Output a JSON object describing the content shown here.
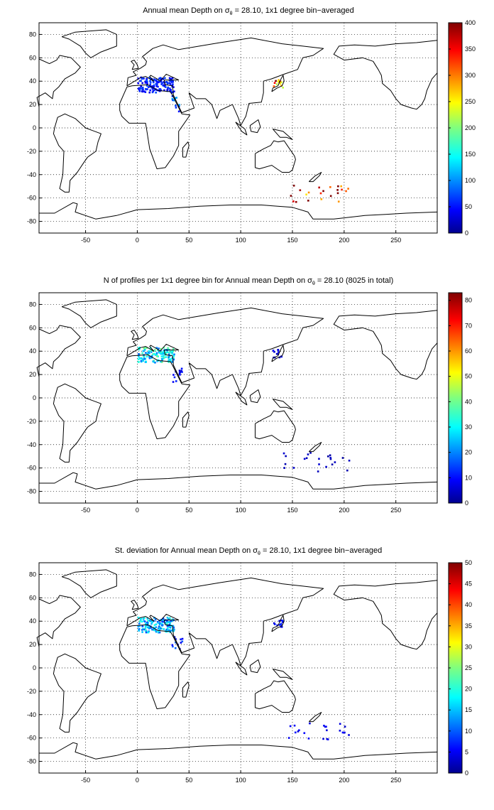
{
  "panels": [
    {
      "title_prefix": "Annual mean Depth on ",
      "sigma": "σ",
      "sigma_sub": "θ",
      "title_suffix": " = 28.10, 1x1 degree bin−averaged",
      "colorbar_ticks": [
        "0",
        "50",
        "100",
        "150",
        "200",
        "250",
        "300",
        "350",
        "400"
      ]
    },
    {
      "title_prefix": "N of profiles per 1x1 degree bin for Annual mean Depth on ",
      "sigma": "σ",
      "sigma_sub": "θ",
      "title_suffix": " = 28.10 (8025 in total)",
      "colorbar_ticks": [
        "0",
        "10",
        "20",
        "30",
        "40",
        "50",
        "60",
        "70",
        "80"
      ]
    },
    {
      "title_prefix": "St. deviation for Annual mean Depth on ",
      "sigma": "σ",
      "sigma_sub": "θ",
      "title_suffix": " = 28.10, 1x1 degree bin−averaged",
      "colorbar_ticks": [
        "0",
        "5",
        "10",
        "15",
        "20",
        "25",
        "30",
        "35",
        "40",
        "45",
        "50"
      ]
    }
  ],
  "chart_data": [
    {
      "type": "heatmap",
      "title": "Annual mean Depth on σθ = 28.10, 1x1 degree bin−averaged",
      "xlim": [
        -95,
        290
      ],
      "ylim": [
        -90,
        90
      ],
      "xticks": [
        -50,
        0,
        50,
        100,
        150,
        200,
        250
      ],
      "yticks": [
        -80,
        -60,
        -40,
        -20,
        0,
        20,
        40,
        60,
        80
      ],
      "colorbar": {
        "min": 0,
        "max": 400,
        "colormap": "jet"
      },
      "grid": true,
      "regions": [
        {
          "name": "Mediterranean",
          "lon": [
            0,
            35
          ],
          "lat": [
            31,
            44
          ],
          "value": 60
        },
        {
          "name": "Red Sea",
          "lon": [
            33,
            43
          ],
          "lat": [
            13,
            28
          ],
          "value": 90
        },
        {
          "name": "Southern Ocean",
          "lon": [
            140,
            205
          ],
          "lat": [
            -63,
            -46
          ],
          "value": 370
        },
        {
          "name": "Japan Sea",
          "lon": [
            130,
            140
          ],
          "lat": [
            35,
            42
          ],
          "value": 330
        }
      ]
    },
    {
      "type": "heatmap",
      "title": "N of profiles per 1x1 degree bin for Annual mean Depth on σθ = 28.10 (8025 in total)",
      "xlim": [
        -95,
        290
      ],
      "ylim": [
        -90,
        90
      ],
      "xticks": [
        -50,
        0,
        50,
        100,
        150,
        200,
        250
      ],
      "yticks": [
        -80,
        -60,
        -40,
        -20,
        0,
        20,
        40,
        60,
        80
      ],
      "colorbar": {
        "min": 0,
        "max": 83,
        "colormap": "jet"
      },
      "grid": true,
      "regions": [
        {
          "name": "Mediterranean",
          "lon": [
            0,
            35
          ],
          "lat": [
            31,
            44
          ],
          "value": 30
        },
        {
          "name": "Red Sea",
          "lon": [
            33,
            43
          ],
          "lat": [
            13,
            28
          ],
          "value": 10
        },
        {
          "name": "Southern Ocean",
          "lon": [
            140,
            205
          ],
          "lat": [
            -63,
            -46
          ],
          "value": 5
        },
        {
          "name": "Japan Sea",
          "lon": [
            130,
            140
          ],
          "lat": [
            35,
            42
          ],
          "value": 8
        }
      ]
    },
    {
      "type": "heatmap",
      "title": "St. deviation for Annual mean Depth on σθ = 28.10, 1x1 degree bin−averaged",
      "xlim": [
        -95,
        290
      ],
      "ylim": [
        -90,
        90
      ],
      "xticks": [
        -50,
        0,
        50,
        100,
        150,
        200,
        250
      ],
      "yticks": [
        -80,
        -60,
        -40,
        -20,
        0,
        20,
        40,
        60,
        80
      ],
      "colorbar": {
        "min": 0,
        "max": 50,
        "colormap": "jet"
      },
      "grid": true,
      "regions": [
        {
          "name": "Mediterranean",
          "lon": [
            0,
            35
          ],
          "lat": [
            31,
            44
          ],
          "value": 15
        },
        {
          "name": "Red Sea",
          "lon": [
            33,
            43
          ],
          "lat": [
            13,
            28
          ],
          "value": 8
        },
        {
          "name": "Southern Ocean",
          "lon": [
            140,
            205
          ],
          "lat": [
            -63,
            -46
          ],
          "value": 5
        },
        {
          "name": "Japan Sea",
          "lon": [
            130,
            140
          ],
          "lat": [
            35,
            42
          ],
          "value": 6
        }
      ]
    }
  ]
}
